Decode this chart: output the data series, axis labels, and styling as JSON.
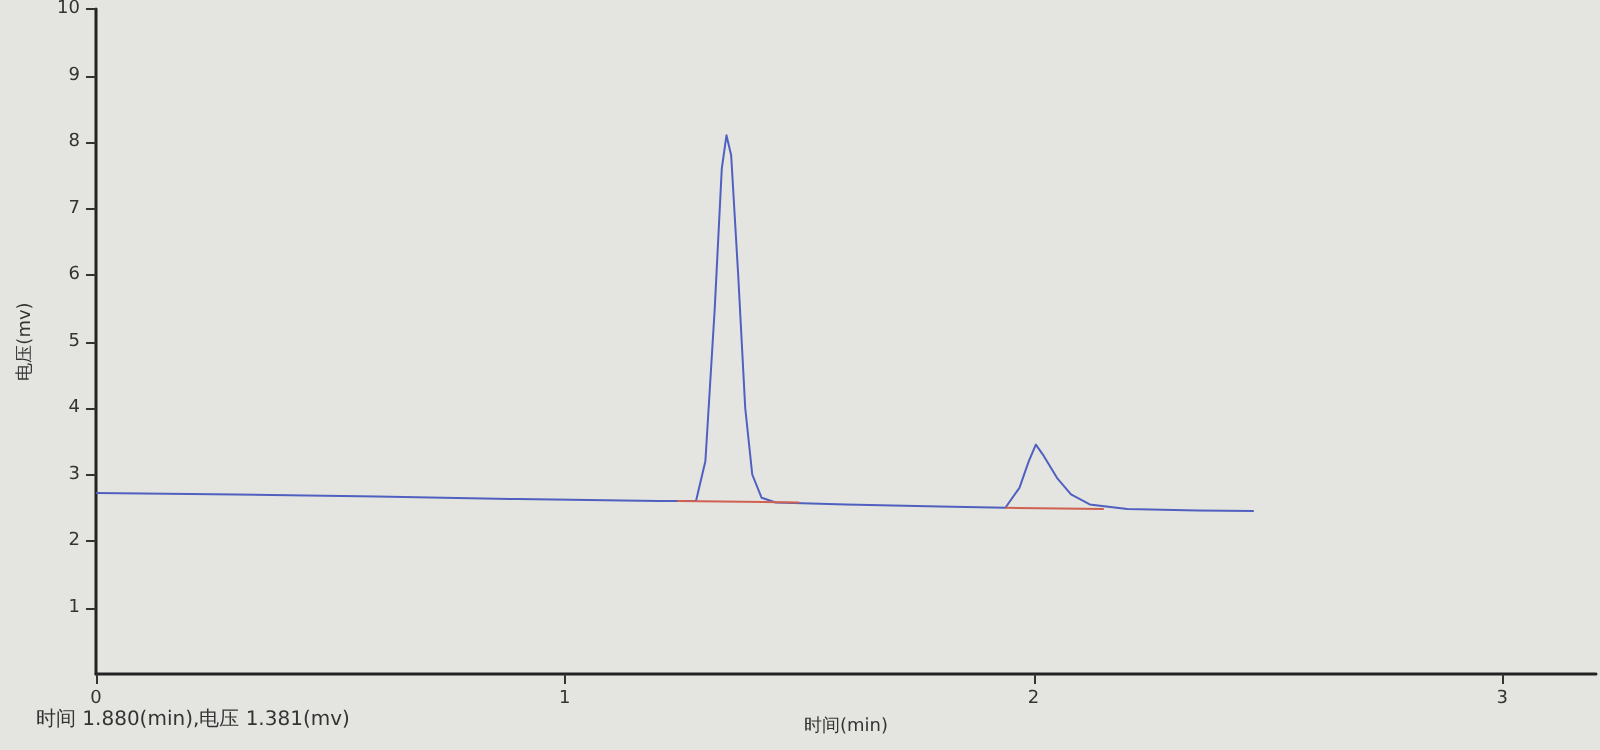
{
  "chart_data": {
    "type": "line",
    "xlabel": "时间(min)",
    "ylabel": "电压(mv)",
    "annotations": [
      "时间 1.880(min),电压 1.381(mv)"
    ],
    "xlim": [
      0,
      3.2
    ],
    "xticks": [
      0,
      1,
      2,
      3
    ],
    "ylim": [
      0,
      10
    ],
    "yticks": [
      1,
      2,
      3,
      4,
      5,
      6,
      7,
      8,
      9,
      10
    ],
    "series": [
      {
        "color": "#5060c0",
        "x": [
          0,
          0.3,
          0.6,
          0.9,
          1.2,
          1.28,
          1.3,
          1.32,
          1.335,
          1.345,
          1.355,
          1.37,
          1.385,
          1.4,
          1.42,
          1.45,
          1.6,
          1.8,
          1.94,
          1.97,
          1.99,
          2.005,
          2.02,
          2.05,
          2.08,
          2.12,
          2.2,
          2.35,
          2.47
        ],
        "values": [
          2.72,
          2.7,
          2.67,
          2.63,
          2.6,
          2.6,
          3.2,
          5.5,
          7.6,
          8.1,
          7.8,
          6.0,
          4.0,
          3.0,
          2.65,
          2.58,
          2.55,
          2.52,
          2.5,
          2.8,
          3.2,
          3.45,
          3.3,
          2.95,
          2.7,
          2.55,
          2.48,
          2.46,
          2.45
        ]
      },
      {
        "color": "#d06050",
        "x": [
          1.24,
          1.5
        ],
        "values": [
          2.6,
          2.58
        ]
      },
      {
        "color": "#d06050",
        "x": [
          1.94,
          2.15
        ],
        "values": [
          2.5,
          2.48
        ]
      }
    ]
  }
}
